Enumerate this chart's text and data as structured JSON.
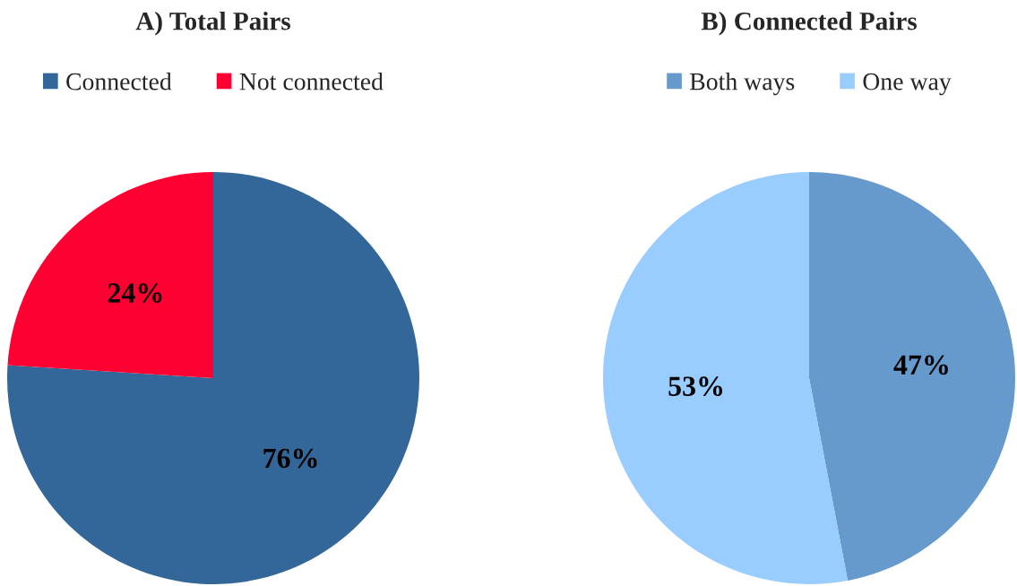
{
  "chart_data": [
    {
      "type": "pie",
      "title": "A) Total Pairs",
      "categories": [
        "Connected",
        "Not connected"
      ],
      "values": [
        76,
        24
      ],
      "colors": [
        "#336699",
        "#ff0033"
      ],
      "value_labels": [
        "76%",
        "24%"
      ],
      "legend": "top"
    },
    {
      "type": "pie",
      "title": "B) Connected Pairs",
      "categories": [
        "Both ways",
        "One way"
      ],
      "values": [
        47,
        53
      ],
      "colors": [
        "#6699cc",
        "#99ccff"
      ],
      "value_labels": [
        "47%",
        "53%"
      ],
      "legend": "top"
    }
  ]
}
